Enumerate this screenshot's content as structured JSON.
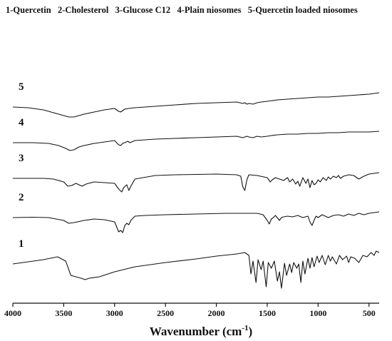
{
  "chart_data": {
    "type": "line",
    "title": "1-Quercetin   2-Cholesterol   3-Glucose C12   4-Plain niosomes   5-Quercetin loaded niosomes",
    "xlabel": "Wavenumber (cm",
    "xlabel_sup": "-1",
    "xlabel_close": ")",
    "ylabel": "",
    "xlim": [
      4000,
      400
    ],
    "x_reversed": true,
    "ylim": [
      0,
      1
    ],
    "y_axis_shown": false,
    "grid": false,
    "legend": "top",
    "x_ticks": [
      4000,
      3500,
      3000,
      2500,
      2000,
      1500,
      1000,
      500
    ],
    "x_tick_labels": [
      "4000",
      "3500",
      "3000",
      "2500",
      "2000",
      "1500",
      "1000",
      "500"
    ],
    "series": [
      {
        "name": "1",
        "x": [
          4000,
          3700,
          3560,
          3480,
          3430,
          3380,
          3330,
          3290,
          3250,
          3150,
          3000,
          2800,
          2500,
          2200,
          2000,
          1800,
          1720,
          1680,
          1660,
          1640,
          1610,
          1590,
          1560,
          1540,
          1510,
          1490,
          1460,
          1430,
          1400,
          1380,
          1360,
          1330,
          1310,
          1280,
          1260,
          1240,
          1210,
          1190,
          1170,
          1150,
          1130,
          1100,
          1080,
          1060,
          1040,
          1010,
          990,
          960,
          930,
          900,
          880,
          860,
          820,
          790,
          760,
          720,
          700,
          680,
          640,
          600,
          560,
          520,
          480,
          450,
          430,
          400
        ],
        "y": [
          0.36,
          0.42,
          0.46,
          0.4,
          0.2,
          0.18,
          0.16,
          0.14,
          0.16,
          0.18,
          0.25,
          0.32,
          0.38,
          0.43,
          0.47,
          0.5,
          0.52,
          0.48,
          0.22,
          0.4,
          0.1,
          0.42,
          0.28,
          0.4,
          0.04,
          0.38,
          0.3,
          0.4,
          0.12,
          0.25,
          0.02,
          0.37,
          0.2,
          0.36,
          0.24,
          0.38,
          0.3,
          0.36,
          0.1,
          0.4,
          0.22,
          0.44,
          0.3,
          0.45,
          0.32,
          0.47,
          0.38,
          0.48,
          0.35,
          0.48,
          0.4,
          0.46,
          0.36,
          0.48,
          0.42,
          0.47,
          0.38,
          0.46,
          0.44,
          0.38,
          0.48,
          0.46,
          0.52,
          0.48,
          0.54,
          0.52
        ]
      },
      {
        "name": "2",
        "x": [
          4000,
          3800,
          3650,
          3500,
          3450,
          3400,
          3300,
          3200,
          3100,
          3000,
          2960,
          2940,
          2920,
          2900,
          2880,
          2860,
          2840,
          2800,
          2700,
          2500,
          2200,
          1900,
          1700,
          1600,
          1540,
          1500,
          1480,
          1460,
          1440,
          1420,
          1380,
          1360,
          1340,
          1300,
          1250,
          1200,
          1150,
          1100,
          1080,
          1060,
          1040,
          1020,
          1000,
          960,
          900,
          850,
          800,
          750,
          700,
          650,
          600,
          550,
          500,
          450,
          400
        ],
        "y": [
          0.66,
          0.665,
          0.66,
          0.62,
          0.58,
          0.59,
          0.62,
          0.64,
          0.63,
          0.6,
          0.46,
          0.48,
          0.45,
          0.55,
          0.58,
          0.56,
          0.62,
          0.68,
          0.69,
          0.7,
          0.71,
          0.72,
          0.72,
          0.72,
          0.7,
          0.62,
          0.57,
          0.64,
          0.66,
          0.69,
          0.62,
          0.66,
          0.67,
          0.68,
          0.67,
          0.69,
          0.66,
          0.68,
          0.6,
          0.55,
          0.62,
          0.68,
          0.66,
          0.7,
          0.66,
          0.69,
          0.7,
          0.68,
          0.71,
          0.69,
          0.72,
          0.7,
          0.72,
          0.73,
          0.74
        ]
      },
      {
        "name": "3",
        "x": [
          4000,
          3700,
          3600,
          3500,
          3460,
          3420,
          3380,
          3350,
          3320,
          3280,
          3200,
          3100,
          3000,
          2960,
          2930,
          2910,
          2880,
          2860,
          2840,
          2800,
          2600,
          2400,
          2200,
          2000,
          1800,
          1760,
          1740,
          1720,
          1700,
          1680,
          1600,
          1500,
          1470,
          1450,
          1420,
          1380,
          1340,
          1300,
          1280,
          1250,
          1220,
          1200,
          1180,
          1150,
          1120,
          1100,
          1080,
          1060,
          1040,
          1020,
          1000,
          980,
          950,
          920,
          900,
          880,
          850,
          820,
          800,
          780,
          750,
          700,
          650,
          600,
          550,
          500,
          450,
          400
        ],
        "y": [
          0.87,
          0.87,
          0.86,
          0.82,
          0.76,
          0.77,
          0.8,
          0.78,
          0.76,
          0.79,
          0.82,
          0.81,
          0.8,
          0.72,
          0.68,
          0.74,
          0.78,
          0.7,
          0.76,
          0.86,
          0.91,
          0.92,
          0.925,
          0.93,
          0.92,
          0.9,
          0.75,
          0.7,
          0.85,
          0.92,
          0.91,
          0.88,
          0.82,
          0.85,
          0.88,
          0.86,
          0.84,
          0.88,
          0.82,
          0.86,
          0.79,
          0.83,
          0.76,
          0.88,
          0.8,
          0.86,
          0.74,
          0.84,
          0.78,
          0.8,
          0.85,
          0.82,
          0.88,
          0.84,
          0.89,
          0.86,
          0.9,
          0.88,
          0.91,
          0.87,
          0.9,
          0.92,
          0.91,
          0.86,
          0.9,
          0.93,
          0.94,
          0.95
        ]
      },
      {
        "name": "4",
        "x": [
          4000,
          3800,
          3650,
          3550,
          3480,
          3440,
          3400,
          3350,
          3300,
          3200,
          3100,
          3000,
          2960,
          2940,
          2920,
          2900,
          2870,
          2850,
          2800,
          2600,
          2400,
          2200,
          2000,
          1800,
          1740,
          1720,
          1700,
          1680,
          1640,
          1600,
          1560,
          1500,
          1460,
          1400,
          1300,
          1200,
          1100,
          1000,
          900,
          800,
          700,
          600,
          500,
          450,
          400
        ],
        "y": [
          1.1,
          1.1,
          1.09,
          1.06,
          1.02,
          0.99,
          1.0,
          1.04,
          1.06,
          1.09,
          1.11,
          1.13,
          1.07,
          1.06,
          1.09,
          1.1,
          1.12,
          1.1,
          1.13,
          1.15,
          1.16,
          1.17,
          1.18,
          1.19,
          1.17,
          1.18,
          1.19,
          1.18,
          1.17,
          1.19,
          1.18,
          1.19,
          1.2,
          1.21,
          1.22,
          1.22,
          1.23,
          1.23,
          1.24,
          1.24,
          1.25,
          1.25,
          1.25,
          1.255,
          1.26
        ]
      },
      {
        "name": "5",
        "x": [
          4000,
          3850,
          3700,
          3600,
          3500,
          3450,
          3400,
          3350,
          3300,
          3200,
          3100,
          3000,
          2960,
          2940,
          2920,
          2900,
          2860,
          2800,
          2600,
          2400,
          2200,
          2000,
          1800,
          1740,
          1720,
          1700,
          1680,
          1640,
          1600,
          1560,
          1500,
          1400,
          1300,
          1200,
          1100,
          1000,
          900,
          800,
          700,
          600,
          500,
          450,
          400
        ],
        "y": [
          1.34,
          1.33,
          1.3,
          1.26,
          1.22,
          1.2,
          1.2,
          1.22,
          1.24,
          1.27,
          1.3,
          1.32,
          1.28,
          1.27,
          1.29,
          1.31,
          1.32,
          1.33,
          1.35,
          1.37,
          1.39,
          1.4,
          1.41,
          1.39,
          1.4,
          1.38,
          1.39,
          1.38,
          1.4,
          1.41,
          1.42,
          1.44,
          1.45,
          1.46,
          1.47,
          1.48,
          1.48,
          1.49,
          1.5,
          1.51,
          1.52,
          1.53,
          1.54
        ]
      }
    ]
  }
}
